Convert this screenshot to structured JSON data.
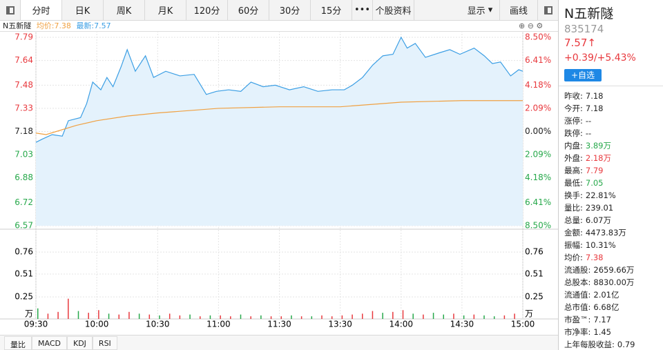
{
  "toolbar": {
    "tabs": [
      "分时",
      "日K",
      "周K",
      "月K",
      "120分",
      "60分",
      "30分",
      "15分",
      "•••",
      "个股资料"
    ],
    "display": "显示",
    "draw": "画线"
  },
  "info": {
    "name": "N五新隧",
    "avg": "均价:7.38",
    "last": "最新:7.57"
  },
  "chart": {
    "type": "line",
    "up_color": "#e8383d",
    "down_color": "#26a84a",
    "x": [
      0,
      3,
      8,
      13,
      16,
      22,
      25,
      28,
      32,
      35,
      38,
      42,
      45,
      49,
      54,
      58,
      64,
      71,
      78,
      84,
      89,
      95,
      101,
      106,
      112,
      118,
      125,
      132,
      139,
      146,
      152,
      156,
      161,
      166,
      171,
      176,
      180,
      183,
      187,
      192,
      199,
      204,
      209,
      216,
      221,
      225,
      229,
      234,
      238,
      240
    ],
    "series": [
      {
        "color": "#3a9ee4",
        "fill": "#e4f2fc",
        "values": [
          7.11,
          7.13,
          7.16,
          7.15,
          7.25,
          7.27,
          7.36,
          7.5,
          7.45,
          7.53,
          7.47,
          7.6,
          7.71,
          7.57,
          7.67,
          7.53,
          7.57,
          7.54,
          7.55,
          7.42,
          7.44,
          7.45,
          7.44,
          7.5,
          7.47,
          7.48,
          7.45,
          7.47,
          7.44,
          7.45,
          7.45,
          7.48,
          7.53,
          7.61,
          7.67,
          7.68,
          7.79,
          7.72,
          7.75,
          7.66,
          7.69,
          7.71,
          7.68,
          7.72,
          7.67,
          7.62,
          7.63,
          7.54,
          7.58,
          7.57
        ]
      },
      {
        "color": "#f0a040",
        "x": [
          0,
          5,
          10,
          20,
          30,
          45,
          60,
          90,
          120,
          150,
          170,
          180,
          210,
          240
        ],
        "values": [
          7.17,
          7.16,
          7.18,
          7.22,
          7.25,
          7.28,
          7.3,
          7.33,
          7.34,
          7.34,
          7.36,
          7.37,
          7.38,
          7.38
        ]
      }
    ],
    "xlim": [
      0,
      240
    ],
    "xticks": [
      {
        "value": 0,
        "label": "09:30"
      },
      {
        "value": 30,
        "label": "10:00"
      },
      {
        "value": 60,
        "label": "10:30"
      },
      {
        "value": 90,
        "label": "11:00"
      },
      {
        "value": 120,
        "label": "11:30"
      },
      {
        "value": 150,
        "label": "13:30"
      },
      {
        "value": 180,
        "label": "14:00"
      },
      {
        "value": 210,
        "label": "14:30"
      },
      {
        "value": 240,
        "label": "15:00"
      }
    ],
    "ylim": [
      6.57,
      7.79
    ],
    "yticks": [
      7.79,
      7.64,
      7.48,
      7.33,
      7.18,
      7.03,
      6.88,
      6.72,
      6.57
    ],
    "y2lim": [
      -8.5,
      8.5
    ],
    "y2ticks": [
      {
        "value": 8.5,
        "label": "8.50%"
      },
      {
        "value": 6.41,
        "label": "6.41%"
      },
      {
        "value": 4.18,
        "label": "4.18%"
      },
      {
        "value": 2.09,
        "label": "2.09%"
      },
      {
        "value": 0,
        "label": "0.00%"
      },
      {
        "value": -2.09,
        "label": "2.09%"
      },
      {
        "value": -4.18,
        "label": "4.18%"
      },
      {
        "value": -6.41,
        "label": "6.41%"
      },
      {
        "value": -8.5,
        "label": "8.50%"
      }
    ]
  },
  "volume": {
    "type": "bar",
    "unit": "万",
    "ylim": [
      0,
      1.02
    ],
    "yticks": [
      0.76,
      0.51,
      0.25
    ],
    "values": [
      0.12,
      0.06,
      0.08,
      0.23,
      0.09,
      0.07,
      0.1,
      0.06,
      0.05,
      0.08,
      0.06,
      0.05,
      0.04,
      0.06,
      0.04,
      0.05,
      0.03,
      0.04,
      0.04,
      0.03,
      0.05,
      0.03,
      0.04,
      0.03,
      0.03,
      0.04,
      0.03,
      0.03,
      0.04,
      0.03,
      0.04,
      0.05,
      0.06,
      0.09,
      0.07,
      0.08,
      0.1,
      0.06,
      0.05,
      0.07,
      0.05,
      0.06,
      0.04,
      0.05,
      0.04,
      0.03,
      0.04,
      0.06
    ],
    "colors": [
      "#26a84a",
      "#e8383d",
      "#e8383d",
      "#e8383d",
      "#26a84a",
      "#e8383d",
      "#e8383d",
      "#26a84a",
      "#e8383d",
      "#e8383d",
      "#26a84a",
      "#e8383d",
      "#26a84a",
      "#e8383d",
      "#e8383d",
      "#26a84a",
      "#e8383d",
      "#26a84a",
      "#e8383d",
      "#e8383d",
      "#26a84a",
      "#e8383d",
      "#26a84a",
      "#e8383d",
      "#e8383d",
      "#26a84a",
      "#e8383d",
      "#26a84a",
      "#e8383d",
      "#e8383d",
      "#e8383d",
      "#e8383d",
      "#e8383d",
      "#e8383d",
      "#26a84a",
      "#e8383d",
      "#e8383d",
      "#26a84a",
      "#e8383d",
      "#26a84a",
      "#26a84a",
      "#e8383d",
      "#26a84a",
      "#e8383d",
      "#26a84a",
      "#26a84a",
      "#e8383d",
      "#e8383d"
    ]
  },
  "quote": {
    "name": "N五新隧",
    "code": "835174",
    "price": "7.57↑",
    "change": "+0.39/+5.43%",
    "add": "+自选"
  },
  "stats": [
    {
      "label": "昨收:",
      "value": "7.18"
    },
    {
      "label": "今开:",
      "value": "7.18"
    },
    {
      "label": "涨停:",
      "value": "--"
    },
    {
      "label": "跌停:",
      "value": "--"
    },
    {
      "label": "内盘:",
      "value": "3.89万",
      "color": "#26a84a"
    },
    {
      "label": "外盘:",
      "value": "2.18万",
      "color": "#e8383d"
    },
    {
      "label": "最高:",
      "value": "7.79",
      "color": "#e8383d"
    },
    {
      "label": "最低:",
      "value": "7.05",
      "color": "#26a84a"
    },
    {
      "label": "换手:",
      "value": "22.81%"
    },
    {
      "label": "量比:",
      "value": "239.01"
    },
    {
      "label": "总量:",
      "value": "6.07万"
    },
    {
      "label": "金额:",
      "value": "4473.83万"
    },
    {
      "label": "振幅:",
      "value": "10.31%"
    },
    {
      "label": "均价:",
      "value": "7.38",
      "color": "#e8383d"
    },
    {
      "label": "流通股:",
      "value": "2659.66万"
    },
    {
      "label": "总股本:",
      "value": "8830.00万"
    },
    {
      "label": "流通值:",
      "value": "2.01亿"
    },
    {
      "label": "总市值:",
      "value": "6.68亿"
    },
    {
      "label": "市盈™:",
      "value": "7.17"
    },
    {
      "label": "市净率:",
      "value": "1.45"
    },
    {
      "label": "上年每股收益:",
      "value": "0.79"
    }
  ],
  "bottom_tabs": [
    "量比",
    "MACD",
    "KDJ",
    "RSI"
  ]
}
